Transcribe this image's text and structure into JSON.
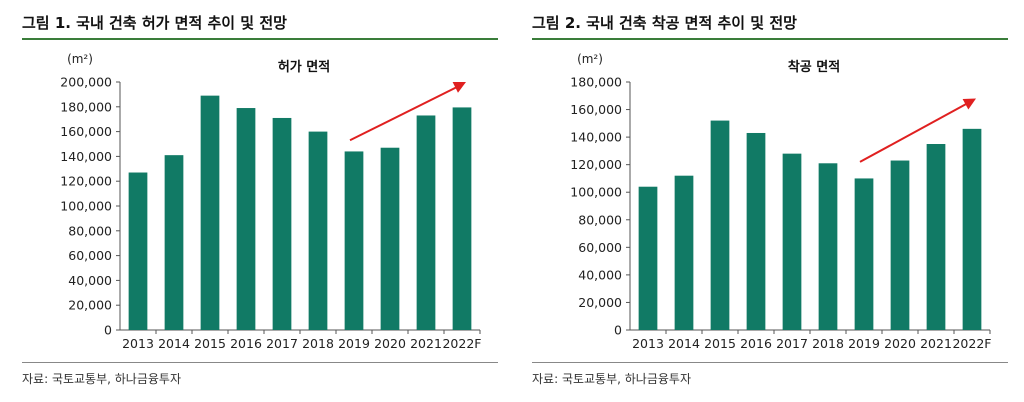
{
  "charts": {
    "permits": {
      "fig_title": "그림 1. 국내 건축 허가 면적 추이 및 전망",
      "source": "자료: 국토교통부, 하나금융투자",
      "unit": "(m²)",
      "accent": "#117a65",
      "arrow_color": "#e02020"
    },
    "starts": {
      "fig_title": "그림 2. 국내 건축 착공 면적 추이 및 전망",
      "source": "자료: 국토교통부, 하나금융투자",
      "unit": "(m²)",
      "accent": "#117a65",
      "arrow_color": "#e02020"
    }
  },
  "chart_data": [
    {
      "type": "bar",
      "title": "허가 면적",
      "categories": [
        "2013",
        "2014",
        "2015",
        "2016",
        "2017",
        "2018",
        "2019",
        "2020",
        "2021",
        "2022F"
      ],
      "values": [
        127000,
        141000,
        189000,
        179000,
        171000,
        160000,
        144000,
        147000,
        173000,
        179500
      ],
      "ylim": [
        0,
        200000
      ],
      "ytick_step": 20000,
      "ytick_labels": [
        "0",
        "20,000",
        "40,000",
        "60,000",
        "80,000",
        "100,000",
        "120,000",
        "140,000",
        "160,000",
        "180,000",
        "200,000"
      ],
      "xlabel": "",
      "ylabel": "(m²)",
      "grid": false,
      "legend": "none",
      "annotation": {
        "type": "trend-arrow",
        "from": {
          "x": "2019",
          "value": 153000
        },
        "to": {
          "x": "2022F",
          "value": 200000
        }
      }
    },
    {
      "type": "bar",
      "title": "착공 면적",
      "categories": [
        "2013",
        "2014",
        "2015",
        "2016",
        "2017",
        "2018",
        "2019",
        "2020",
        "2021",
        "2022F"
      ],
      "values": [
        104000,
        112000,
        152000,
        143000,
        128000,
        121000,
        110000,
        123000,
        135000,
        146000
      ],
      "ylim": [
        0,
        180000
      ],
      "ytick_step": 20000,
      "ytick_labels": [
        "0",
        "20,000",
        "40,000",
        "60,000",
        "80,000",
        "100,000",
        "120,000",
        "140,000",
        "160,000",
        "180,000"
      ],
      "xlabel": "",
      "ylabel": "(m²)",
      "grid": false,
      "legend": "none",
      "annotation": {
        "type": "trend-arrow",
        "from": {
          "x": "2019",
          "value": 122000
        },
        "to": {
          "x": "2022F",
          "value": 168000
        }
      }
    }
  ]
}
